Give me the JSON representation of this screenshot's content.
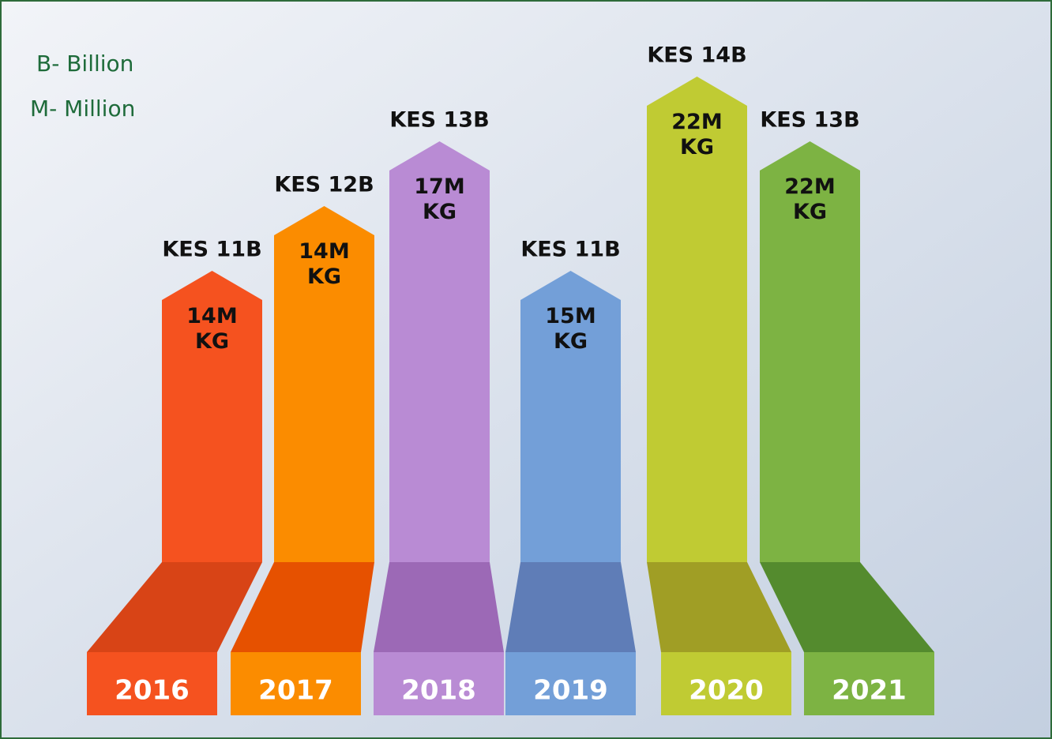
{
  "chart_data": {
    "type": "bar",
    "annotations": [
      "B- Billion",
      "M- Million"
    ],
    "categories": [
      "2016",
      "2017",
      "2018",
      "2019",
      "2020",
      "2021"
    ],
    "values": [
      11,
      12,
      13,
      11,
      14,
      13
    ],
    "value_labels": [
      "KES 11B",
      "KES 12B",
      "KES 13B",
      "KES 11B",
      "KES 14B",
      "KES 13B"
    ],
    "volume_labels": [
      "14M KG",
      "14M KG",
      "17M KG",
      "15M KG",
      "22M KG",
      "22M KG"
    ],
    "colors": [
      "#f5521f",
      "#fb8c00",
      "#b98bd4",
      "#739fd8",
      "#c0cb33",
      "#7db343"
    ],
    "shade_colors": [
      "#d84416",
      "#e65100",
      "#9c69b6",
      "#5f7db7",
      "#a09e25",
      "#548b2e"
    ],
    "ylim": [
      6.5,
      14
    ]
  }
}
